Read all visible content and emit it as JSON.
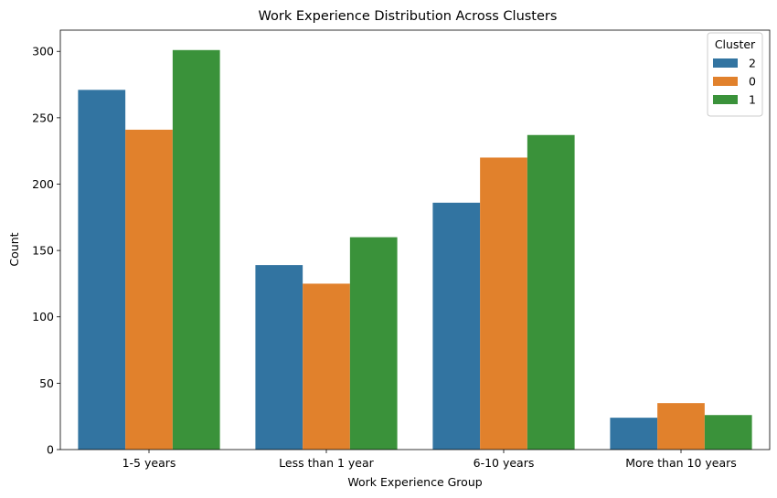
{
  "chart_data": {
    "type": "bar",
    "title": "Work Experience Distribution Across Clusters",
    "xlabel": "Work Experience Group",
    "ylabel": "Count",
    "categories": [
      "1-5 years",
      "Less than 1 year",
      "6-10 years",
      "More than 10 years"
    ],
    "series": [
      {
        "name": "2",
        "color": "#3274a1",
        "values": [
          271,
          139,
          186,
          24
        ]
      },
      {
        "name": "0",
        "color": "#e1812c",
        "values": [
          241,
          125,
          220,
          35
        ]
      },
      {
        "name": "1",
        "color": "#3a923a",
        "values": [
          301,
          160,
          237,
          26
        ]
      }
    ],
    "ylim": [
      0,
      316
    ],
    "yticks": [
      0,
      50,
      100,
      150,
      200,
      250,
      300
    ],
    "legend": {
      "title": "Cluster",
      "position": "top-right"
    },
    "grid": false
  }
}
